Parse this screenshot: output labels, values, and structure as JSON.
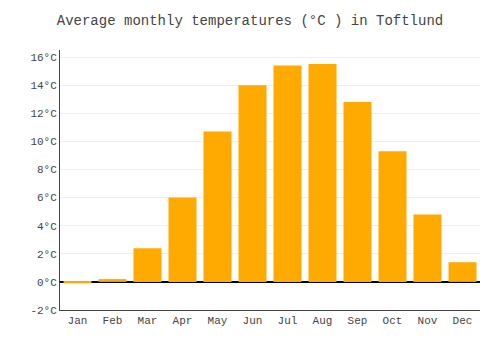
{
  "chart_data": {
    "type": "bar",
    "title": "Average monthly temperatures (°C ) in Toftlund",
    "categories": [
      "Jan",
      "Feb",
      "Mar",
      "Apr",
      "May",
      "Jun",
      "Jul",
      "Aug",
      "Sep",
      "Oct",
      "Nov",
      "Dec"
    ],
    "values": [
      -0.1,
      0.2,
      2.4,
      6.0,
      10.7,
      14.0,
      15.4,
      15.5,
      12.8,
      9.3,
      4.8,
      1.4
    ],
    "color": "#FFAA00",
    "ylim": [
      -2,
      16.5
    ],
    "yticks": [
      {
        "value": -2,
        "label": "-2°C"
      },
      {
        "value": 0,
        "label": "0°C"
      },
      {
        "value": 2,
        "label": "2°C"
      },
      {
        "value": 4,
        "label": "4°C"
      },
      {
        "value": 6,
        "label": "6°C"
      },
      {
        "value": 8,
        "label": "8°C"
      },
      {
        "value": 10,
        "label": "10°C"
      },
      {
        "value": 12,
        "label": "12°C"
      },
      {
        "value": 14,
        "label": "14°C"
      },
      {
        "value": 16,
        "label": "16°C"
      }
    ],
    "grid": true
  }
}
